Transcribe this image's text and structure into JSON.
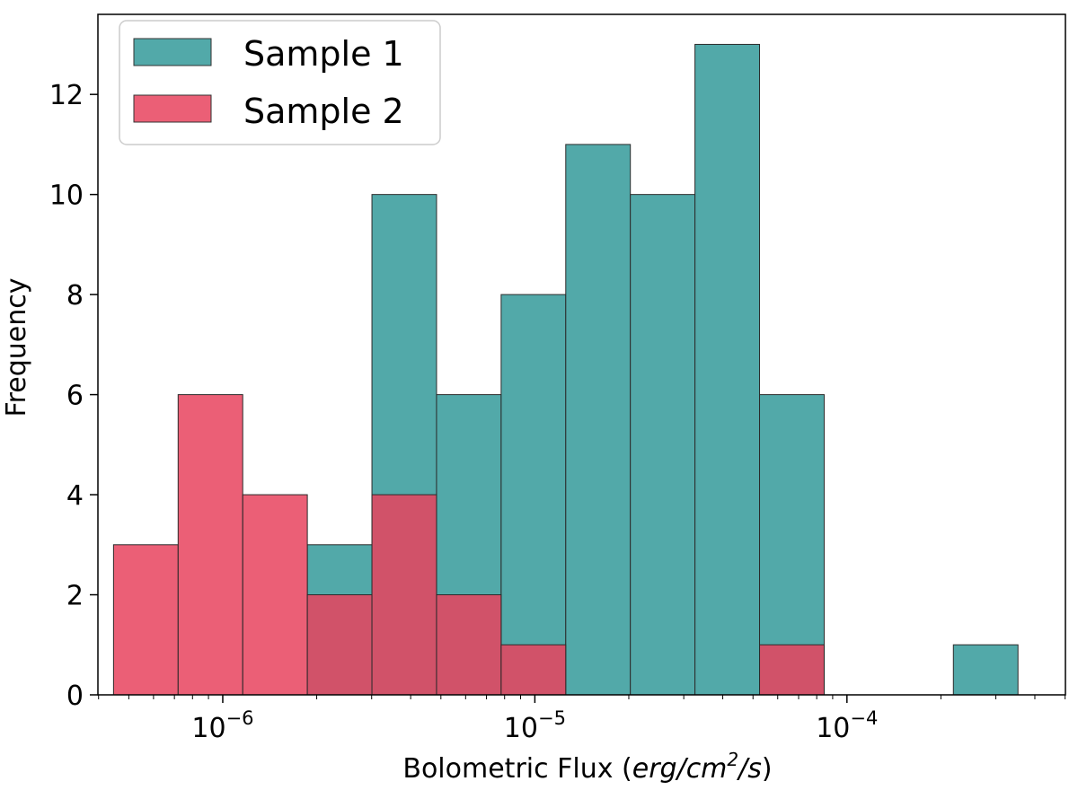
{
  "chart_data": {
    "type": "bar",
    "subtype": "histogram",
    "xscale": "log",
    "xlim_log10": [
      -6.4,
      -3.3
    ],
    "ylim": [
      0,
      13.6
    ],
    "xlabel": "Bolometric Flux (erg/cm²/s)",
    "xlabel_parts": {
      "prefix": "Bolometric Flux (",
      "math": "erg/cm",
      "sup": "2",
      "suffix": "/s)"
    },
    "ylabel": "Frequency",
    "yticks": [
      0,
      2,
      4,
      6,
      8,
      10,
      12
    ],
    "xticks": [
      {
        "base": "10",
        "exp": "−6",
        "log10": -6
      },
      {
        "base": "10",
        "exp": "−5",
        "log10": -5
      },
      {
        "base": "10",
        "exp": "−4",
        "log10": -4
      }
    ],
    "bin_edges_log10": [
      -6.35,
      -6.143,
      -5.936,
      -5.729,
      -5.522,
      -5.315,
      -5.108,
      -4.901,
      -4.694,
      -4.487,
      -4.28,
      -4.073,
      -3.866,
      -3.659,
      -3.452
    ],
    "legend_position": "upper-left",
    "series": [
      {
        "name": "Sample 1",
        "color": "#4ca6a6",
        "counts": [
          0,
          0,
          0,
          3,
          10,
          6,
          8,
          11,
          10,
          13,
          6,
          0,
          0,
          1
        ]
      },
      {
        "name": "Sample 2",
        "color": "#e8435e",
        "counts": [
          3,
          6,
          4,
          2,
          4,
          2,
          1,
          0,
          0,
          0,
          1,
          0,
          0,
          0
        ]
      }
    ]
  }
}
